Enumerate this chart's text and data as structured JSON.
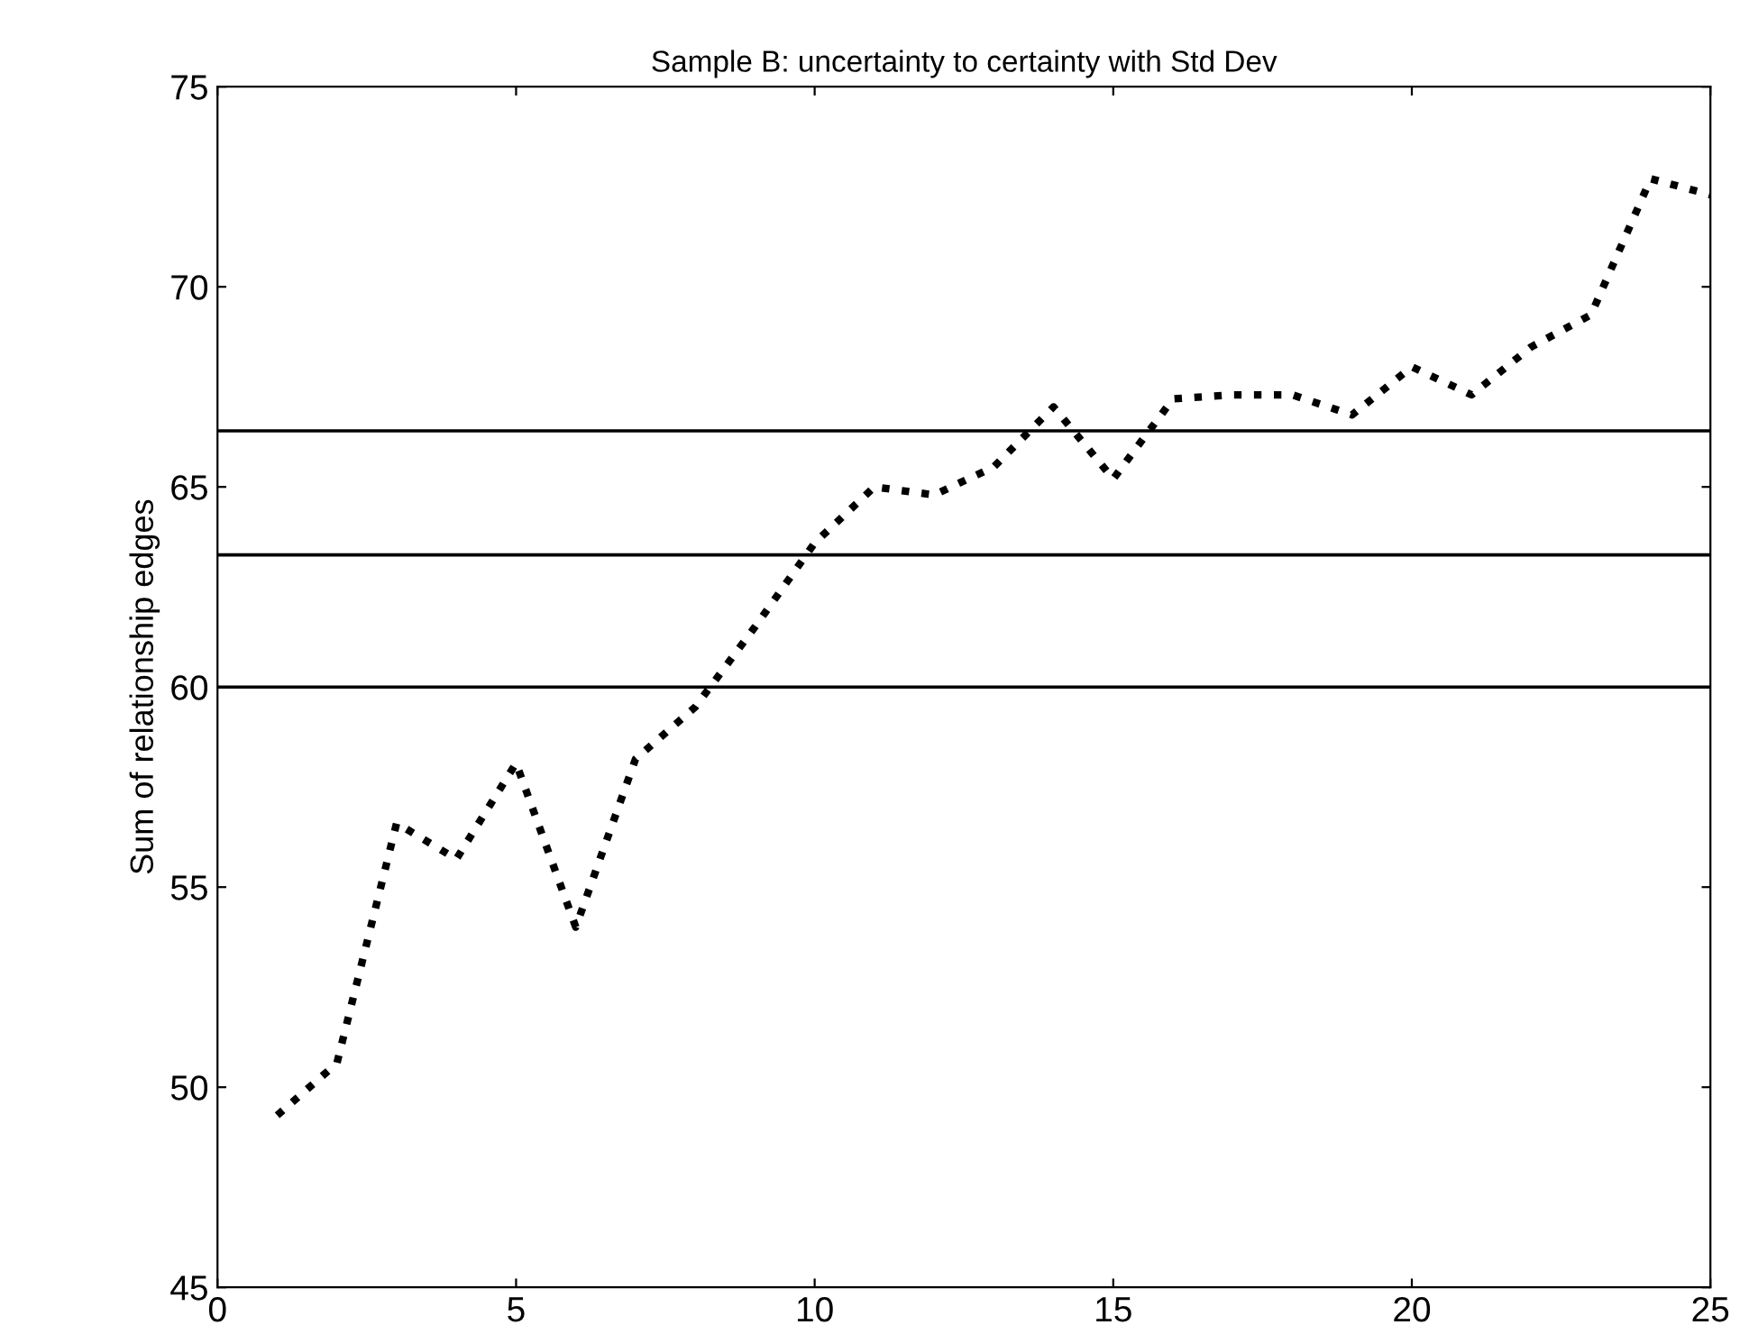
{
  "chart_data": {
    "type": "line",
    "title": "Sample B: uncertainty to certainty with Std Dev",
    "ylabel": "Sum of relationship edges",
    "x": [
      1,
      2,
      3,
      4,
      5,
      6,
      7,
      8,
      9,
      10,
      11,
      12,
      13,
      14,
      15,
      16,
      17,
      18,
      19,
      20,
      21,
      22,
      23,
      24,
      25
    ],
    "series": [
      {
        "color": "#000000",
        "values": [
          49.3,
          50.6,
          56.6,
          55.7,
          58.1,
          54.0,
          58.2,
          59.5,
          61.5,
          63.6,
          65.0,
          64.8,
          65.5,
          67.0,
          65.2,
          67.2,
          67.3,
          67.3,
          66.8,
          68.0,
          67.3,
          68.5,
          69.3,
          72.7,
          72.3
        ]
      }
    ],
    "line_style": "dotted",
    "marker": "none",
    "grid": false,
    "legend": false,
    "xlim": [
      0,
      25
    ],
    "xticks": [
      0,
      5,
      10,
      15,
      20,
      25
    ],
    "ylim": [
      45,
      75
    ],
    "yticks": [
      45,
      50,
      55,
      60,
      65,
      70,
      75
    ],
    "ref_lines": [
      {
        "axis": "y",
        "value": 66.4,
        "color": "#000000"
      },
      {
        "axis": "y",
        "value": 63.3,
        "color": "#000000"
      },
      {
        "axis": "y",
        "value": 60.0,
        "color": "#000000"
      }
    ]
  }
}
